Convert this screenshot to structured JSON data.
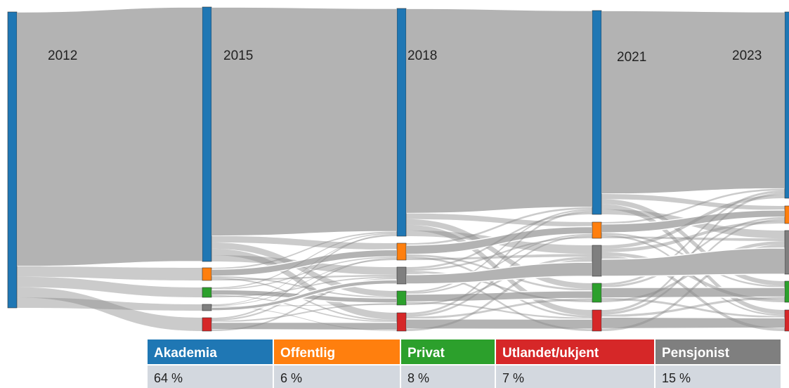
{
  "years": [
    "2012",
    "2015",
    "2018",
    "2021",
    "2023"
  ],
  "legend": {
    "headers": [
      "Akademia",
      "Offentlig",
      "Privat",
      "Utlandet/ukjent",
      "Pensjonist"
    ],
    "values": [
      "64 %",
      "6 %",
      "8 %",
      "7 %",
      "15 %"
    ]
  }
}
